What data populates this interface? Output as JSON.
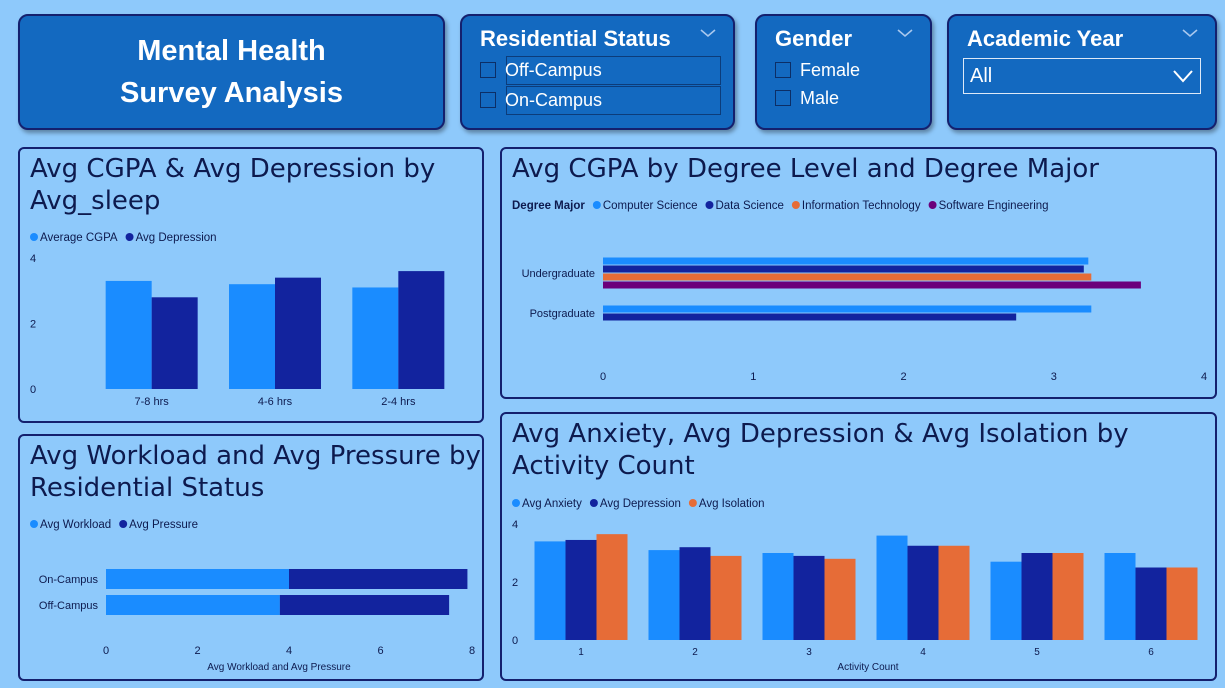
{
  "header": {
    "title_line1": "Mental Health",
    "title_line2": "Survey Analysis"
  },
  "slicers": {
    "residential": {
      "title": "Residential Status",
      "options": [
        "Off-Campus",
        "On-Campus"
      ]
    },
    "gender": {
      "title": "Gender",
      "options": [
        "Female",
        "Male"
      ]
    },
    "academic_year": {
      "title": "Academic Year",
      "selected": "All"
    }
  },
  "colors": {
    "light_blue": "#1a8cff",
    "dark_blue": "#12239e",
    "orange": "#e66c37",
    "purple": "#6b007b",
    "bg": "#8ec9fb",
    "dark_tile": "#1369c0"
  },
  "chart_data": [
    {
      "id": "sleep",
      "type": "bar",
      "title": "Avg CGPA & Avg Depression by Avg_sleep",
      "categories": [
        "7-8 hrs",
        "4-6 hrs",
        "2-4 hrs"
      ],
      "series": [
        {
          "name": "Average CGPA",
          "values": [
            3.3,
            3.2,
            3.1
          ]
        },
        {
          "name": "Avg Depression",
          "values": [
            2.8,
            3.4,
            3.6
          ]
        }
      ],
      "ylim": [
        0,
        4
      ],
      "yticks": [
        0,
        2,
        4
      ],
      "legend": "top-left"
    },
    {
      "id": "degree",
      "type": "bar",
      "orientation": "horizontal",
      "title": "Avg CGPA by Degree Level and Degree Major",
      "legend_title": "Degree Major",
      "categories": [
        "Undergraduate",
        "Postgraduate"
      ],
      "series": [
        {
          "name": "Computer Science",
          "values": [
            3.23,
            3.25
          ]
        },
        {
          "name": "Data Science",
          "values": [
            3.2,
            2.75
          ]
        },
        {
          "name": "Information Technology",
          "values": [
            3.25,
            null
          ]
        },
        {
          "name": "Software Engineering",
          "values": [
            3.58,
            null
          ]
        }
      ],
      "xlim": [
        0,
        4
      ],
      "xticks": [
        0,
        1,
        2,
        3,
        4
      ],
      "legend": "top-left"
    },
    {
      "id": "workload",
      "type": "bar",
      "orientation": "horizontal",
      "stacked": true,
      "title": "Avg Workload and Avg Pressure by Residential Status",
      "categories": [
        "On-Campus",
        "Off-Campus"
      ],
      "series": [
        {
          "name": "Avg Workload",
          "values": [
            4.0,
            3.8
          ]
        },
        {
          "name": "Avg Pressure",
          "values": [
            3.9,
            3.7
          ]
        }
      ],
      "xlabel": "Avg Workload and Avg Pressure",
      "xlim": [
        0,
        8
      ],
      "xticks": [
        0,
        2,
        4,
        6,
        8
      ],
      "legend": "top-left"
    },
    {
      "id": "activity",
      "type": "bar",
      "title": "Avg Anxiety, Avg Depression & Avg Isolation by Activity Count",
      "categories": [
        "1",
        "2",
        "3",
        "4",
        "5",
        "6"
      ],
      "series": [
        {
          "name": "Avg Anxiety",
          "values": [
            3.4,
            3.1,
            3.0,
            3.6,
            2.7,
            3.0
          ]
        },
        {
          "name": "Avg Depression",
          "values": [
            3.45,
            3.2,
            2.9,
            3.25,
            3.0,
            2.5
          ]
        },
        {
          "name": "Avg Isolation",
          "values": [
            3.65,
            2.9,
            2.8,
            3.25,
            3.0,
            2.5
          ]
        }
      ],
      "xlabel": "Activity Count",
      "ylim": [
        0,
        4
      ],
      "yticks": [
        0,
        2,
        4
      ],
      "legend": "top-left"
    }
  ]
}
